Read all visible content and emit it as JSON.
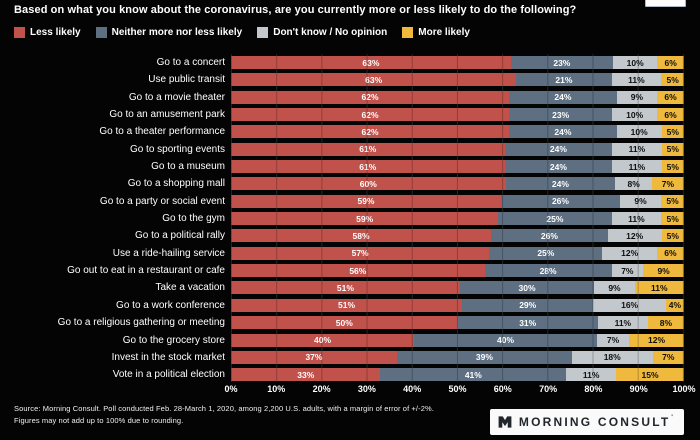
{
  "chart_data": {
    "type": "bar",
    "orientation": "horizontal",
    "stacked": true,
    "normalized_to_full_width": true,
    "title": "Based on what you know about the coronavirus, are you currently more or less likely to do the following?",
    "value_suffix": "%",
    "categories": [
      "Go to a concert",
      "Use public transit",
      "Go to a movie theater",
      "Go to an amusement park",
      "Go to a theater performance",
      "Go to sporting events",
      "Go to a museum",
      "Go to a shopping mall",
      "Go to a party or social event",
      "Go to the gym",
      "Go to a political rally",
      "Use a ride-hailing service",
      "Go out to eat in a restaurant or cafe",
      "Take a vacation",
      "Go to a work conference",
      "Go to a religious gathering or meeting",
      "Go to the grocery store",
      "Invest in the stock market",
      "Vote in a political election"
    ],
    "series": [
      {
        "name": "Less likely",
        "color": "#C1514B",
        "label_color": "#FFFFFF",
        "values": [
          63,
          63,
          62,
          62,
          62,
          61,
          61,
          60,
          59,
          59,
          58,
          57,
          56,
          51,
          51,
          50,
          40,
          37,
          33
        ]
      },
      {
        "name": "Neither more nor less likely",
        "color": "#5D6F81",
        "label_color": "#FFFFFF",
        "values": [
          23,
          21,
          24,
          23,
          24,
          24,
          24,
          24,
          26,
          25,
          26,
          25,
          28,
          30,
          29,
          31,
          40,
          39,
          41
        ]
      },
      {
        "name": "Don't know / No opinion",
        "color": "#C3C8CC",
        "label_color": "#0E0E0E",
        "values": [
          10,
          11,
          9,
          10,
          10,
          11,
          11,
          8,
          9,
          11,
          12,
          12,
          7,
          9,
          16,
          11,
          7,
          18,
          11
        ]
      },
      {
        "name": "More likely",
        "color": "#EFB93D",
        "label_color": "#0E0E0E",
        "values": [
          6,
          5,
          6,
          6,
          5,
          5,
          5,
          7,
          5,
          5,
          5,
          6,
          9,
          11,
          4,
          8,
          12,
          7,
          15
        ]
      }
    ],
    "x_axis": {
      "min": 0,
      "max": 100,
      "ticks": [
        "0%",
        "10%",
        "20%",
        "30%",
        "40%",
        "50%",
        "60%",
        "70%",
        "80%",
        "90%",
        "100%"
      ]
    },
    "legend_position": "top-left",
    "grid": true
  },
  "footer": {
    "source": "Source: Morning Consult. Poll conducted Feb. 28-March 1, 2020, among 2,200 U.S. adults, with a margin of error of +/-2%.",
    "note": "Figures may not add up to 100% due to rounding."
  },
  "logo": {
    "text": "MORNING CONSULT",
    "mark": "'"
  }
}
